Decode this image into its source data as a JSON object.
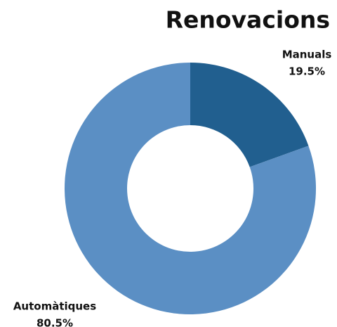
{
  "chart_data": {
    "type": "pie",
    "title": "Renovacions",
    "categories": [
      "Manuals",
      "Automàtiques"
    ],
    "values": [
      19.5,
      80.5
    ],
    "value_labels": [
      "19.5%",
      "80.5%"
    ],
    "colors": [
      "#215f8f",
      "#5b8fc4"
    ],
    "donut": true
  }
}
